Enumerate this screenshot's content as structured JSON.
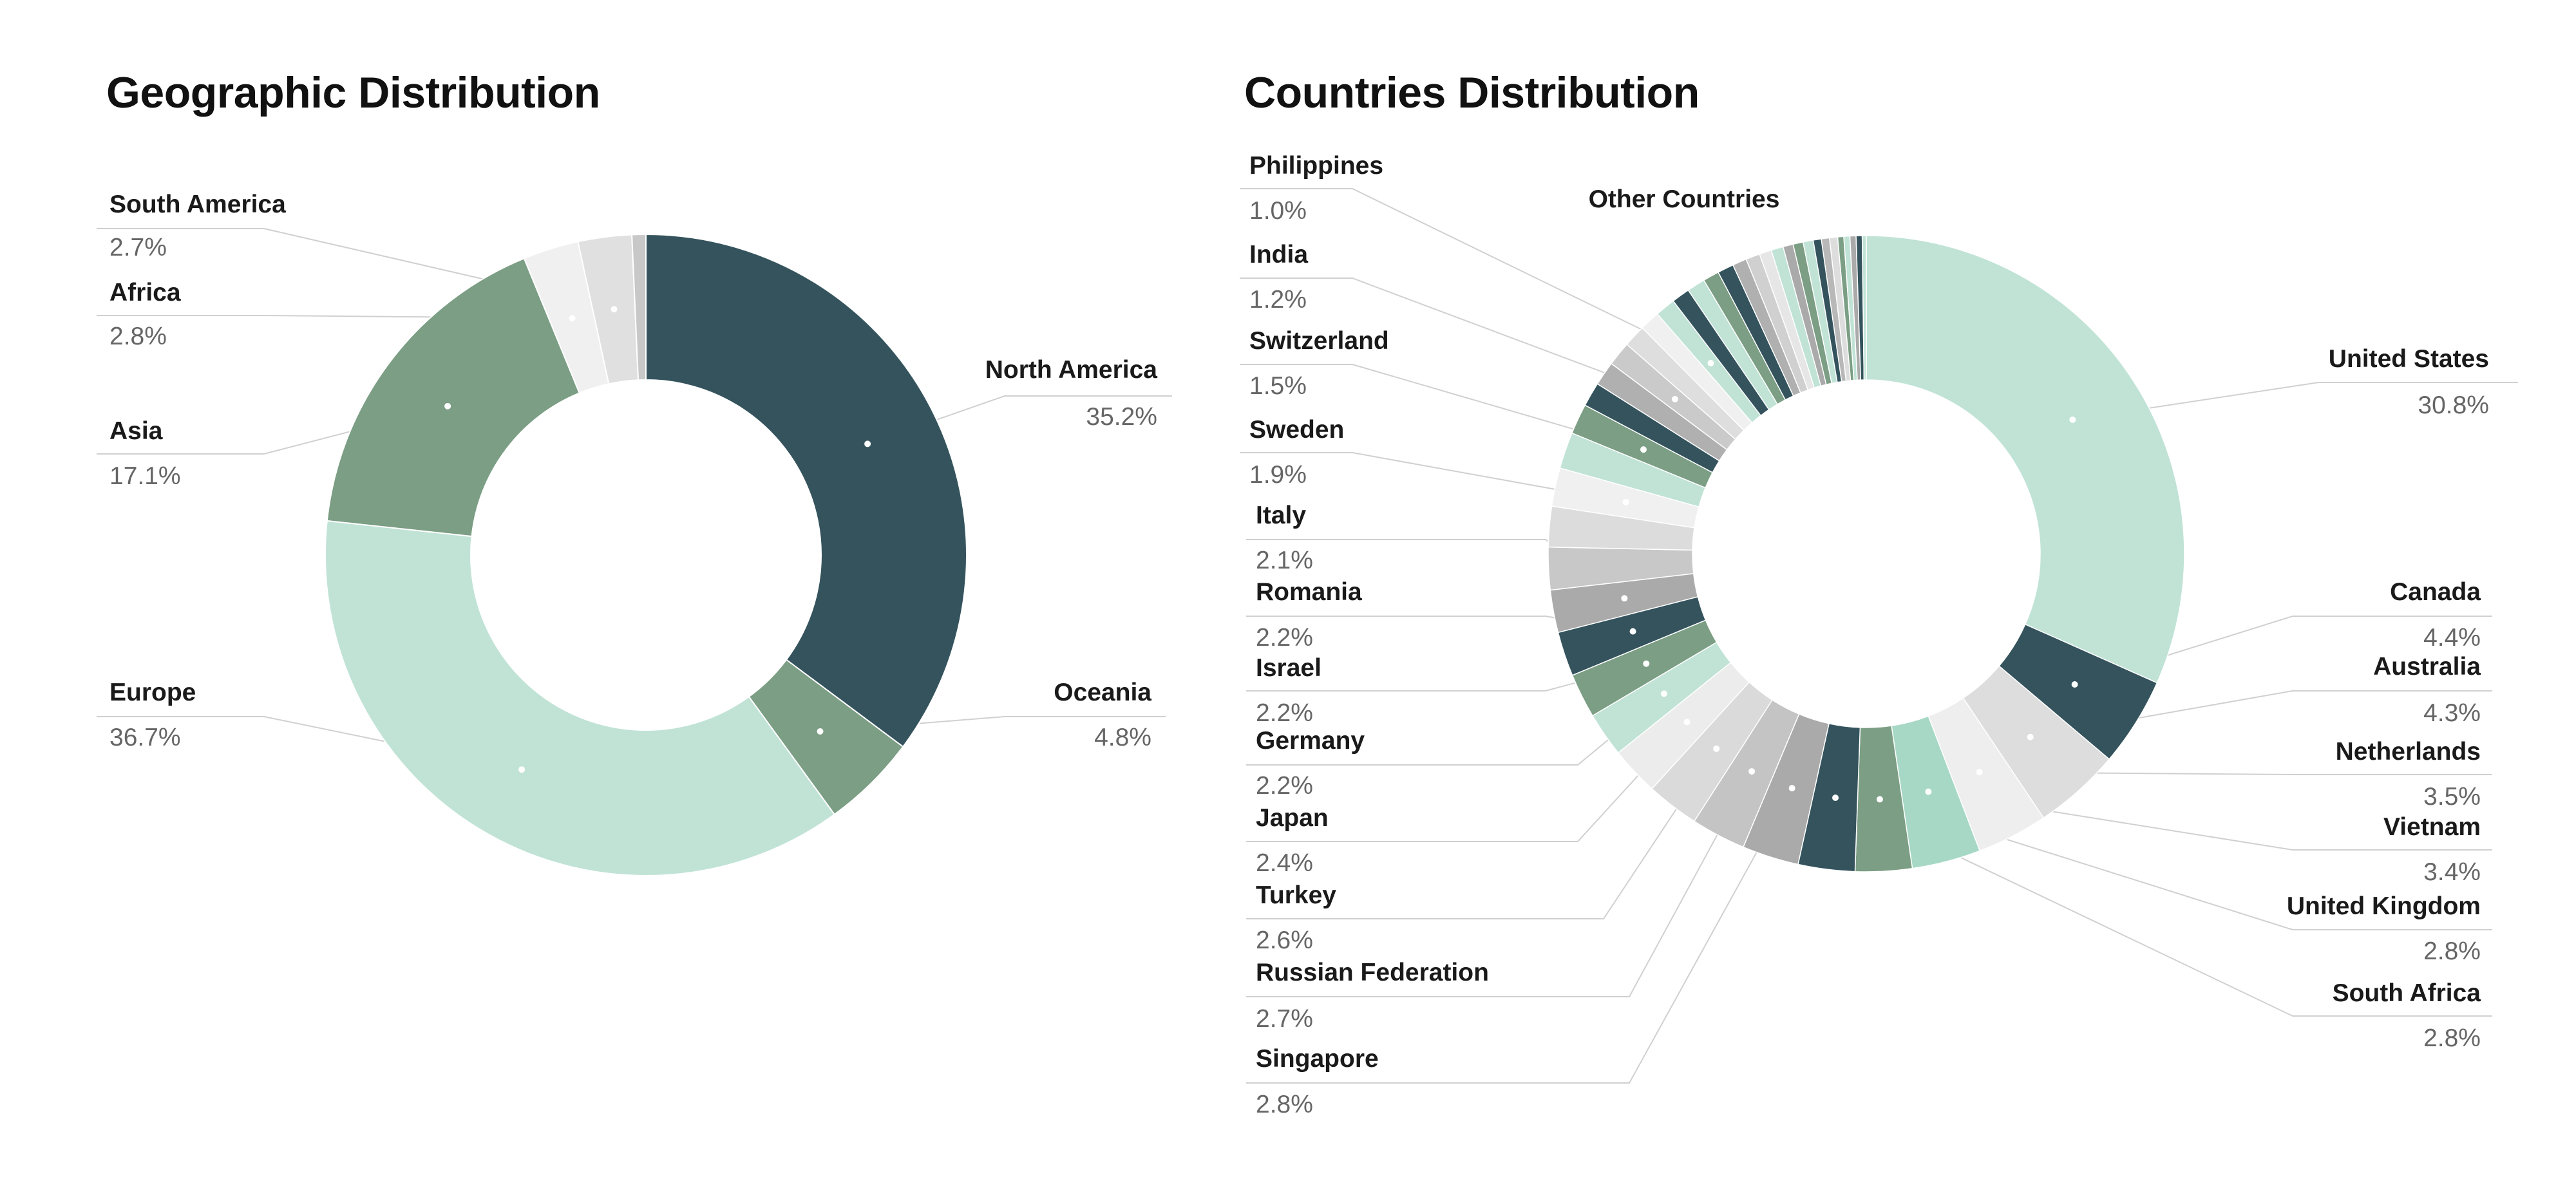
{
  "chart_data": [
    {
      "type": "pie",
      "variant": "donut",
      "title": "Geographic Distribution",
      "unit": "%",
      "series": [
        {
          "label": "North America",
          "value": 35.2,
          "display": "35.2%",
          "color": "#34535d"
        },
        {
          "label": "Oceania",
          "value": 4.8,
          "display": "4.8%",
          "color": "#7b9e84"
        },
        {
          "label": "Europe",
          "value": 36.7,
          "display": "36.7%",
          "color": "#c0e3d6"
        },
        {
          "label": "Asia",
          "value": 17.1,
          "display": "17.1%",
          "color": "#7b9e84"
        },
        {
          "label": "Africa",
          "value": 2.8,
          "display": "2.8%",
          "color": "#f0f0f0"
        },
        {
          "label": "South America",
          "value": 2.7,
          "display": "2.7%",
          "color": "#e0e0e0"
        },
        {
          "label": "",
          "value": 0.7,
          "display": "",
          "color": "#c8c8c8"
        }
      ]
    },
    {
      "type": "pie",
      "variant": "donut",
      "title": "Countries Distribution",
      "unit": "%",
      "series": [
        {
          "label": "United States",
          "value": 30.8,
          "display": "30.8%",
          "color": "#c0e3d6"
        },
        {
          "label": "Canada",
          "value": 4.4,
          "display": "4.4%",
          "color": "#34535d"
        },
        {
          "label": "Australia",
          "value": 4.3,
          "display": "4.3%",
          "color": "#dddddd"
        },
        {
          "label": "Netherlands",
          "value": 3.5,
          "display": "3.5%",
          "color": "#eeeeee"
        },
        {
          "label": "Vietnam",
          "value": 3.4,
          "display": "3.4%",
          "color": "#a7d8c5"
        },
        {
          "label": "United Kingdom",
          "value": 2.8,
          "display": "2.8%",
          "color": "#7b9e84"
        },
        {
          "label": "South Africa",
          "value": 2.8,
          "display": "2.8%",
          "color": "#34535d"
        },
        {
          "label": "Singapore",
          "value": 2.8,
          "display": "2.8%",
          "color": "#aaaaaa"
        },
        {
          "label": "Russian Federation",
          "value": 2.7,
          "display": "2.7%",
          "color": "#c4c4c4"
        },
        {
          "label": "Turkey",
          "value": 2.6,
          "display": "2.6%",
          "color": "#dadada"
        },
        {
          "label": "Japan",
          "value": 2.4,
          "display": "2.4%",
          "color": "#ececec"
        },
        {
          "label": "Germany",
          "value": 2.2,
          "display": "2.2%",
          "color": "#c0e3d6"
        },
        {
          "label": "Israel",
          "value": 2.2,
          "display": "2.2%",
          "color": "#7b9e84"
        },
        {
          "label": "Romania",
          "value": 2.2,
          "display": "2.2%",
          "color": "#34535d"
        },
        {
          "label": "Italy",
          "value": 2.1,
          "display": "2.1%",
          "color": "#aaaaaa"
        },
        {
          "label": "",
          "value": 2.1,
          "display": "",
          "color": "#c8c8c8"
        },
        {
          "label": "",
          "value": 2.0,
          "display": "",
          "color": "#dcdcdc"
        },
        {
          "label": "Sweden",
          "value": 1.9,
          "display": "1.9%",
          "color": "#f0f0f0"
        },
        {
          "label": "",
          "value": 1.8,
          "display": "",
          "color": "#c0e3d6"
        },
        {
          "label": "Switzerland",
          "value": 1.5,
          "display": "1.5%",
          "color": "#7b9e84"
        },
        {
          "label": "",
          "value": 1.2,
          "display": "",
          "color": "#34535d"
        },
        {
          "label": "",
          "value": 1.2,
          "display": "",
          "color": "#b0b0b0"
        },
        {
          "label": "India",
          "value": 1.2,
          "display": "1.2%",
          "color": "#cacaca"
        },
        {
          "label": "",
          "value": 1.1,
          "display": "",
          "color": "#dedede"
        },
        {
          "label": "",
          "value": 1.0,
          "display": "",
          "color": "#f0f0f0"
        },
        {
          "label": "Philippines",
          "value": 1.0,
          "display": "1.0%",
          "color": "#c0e3d6"
        },
        {
          "label": "",
          "value": 0.9,
          "display": "",
          "color": "#34535d"
        },
        {
          "label": "",
          "value": 0.9,
          "display": "",
          "color": "#c0e3d6"
        },
        {
          "label": "",
          "value": 0.8,
          "display": "",
          "color": "#7b9e84"
        },
        {
          "label": "",
          "value": 0.8,
          "display": "",
          "color": "#34535d"
        },
        {
          "label": "",
          "value": 0.7,
          "display": "",
          "color": "#b0b0b0"
        },
        {
          "label": "",
          "value": 0.7,
          "display": "",
          "color": "#d0d0d0"
        },
        {
          "label": "",
          "value": 0.6,
          "display": "",
          "color": "#e6e6e6"
        },
        {
          "label": "",
          "value": 0.6,
          "display": "",
          "color": "#c0e3d6"
        },
        {
          "label": "",
          "value": 0.5,
          "display": "",
          "color": "#aaaaaa"
        },
        {
          "label": "",
          "value": 0.5,
          "display": "",
          "color": "#7b9e84"
        },
        {
          "label": "",
          "value": 0.5,
          "display": "",
          "color": "#c0e3d6"
        },
        {
          "label": "",
          "value": 0.4,
          "display": "",
          "color": "#34535d"
        },
        {
          "label": "",
          "value": 0.4,
          "display": "",
          "color": "#b8b8b8"
        },
        {
          "label": "",
          "value": 0.4,
          "display": "",
          "color": "#dddddd"
        },
        {
          "label": "",
          "value": 0.3,
          "display": "",
          "color": "#7b9e84"
        },
        {
          "label": "",
          "value": 0.3,
          "display": "",
          "color": "#c0e3d6"
        },
        {
          "label": "",
          "value": 0.3,
          "display": "",
          "color": "#aaaaaa"
        },
        {
          "label": "",
          "value": 0.3,
          "display": "",
          "color": "#34535d"
        },
        {
          "label": "Other Countries",
          "value": 0.2,
          "display": "",
          "color": "#c0e3d6"
        }
      ]
    }
  ]
}
